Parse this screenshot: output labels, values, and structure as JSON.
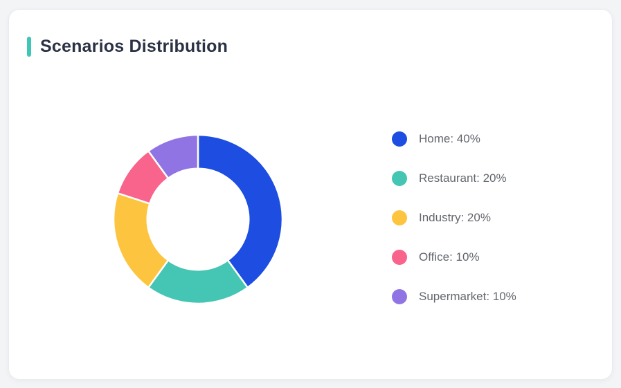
{
  "page": {
    "background_color": "#f3f4f6"
  },
  "card": {
    "title": "Scenarios Distribution",
    "accent_color": "#3ec6b6",
    "background_color": "#ffffff",
    "title_color": "#2b3245"
  },
  "chart_data": {
    "type": "pie",
    "variant": "donut",
    "title": "Scenarios Distribution",
    "inner_radius_ratio": 0.6,
    "start_angle_deg": 0,
    "direction": "clockwise",
    "legend_position": "right",
    "segment_gap_color": "#ffffff",
    "segments": [
      {
        "label": "Home",
        "value": 40,
        "unit": "%",
        "color": "#1d4de1",
        "legend_text": "Home: 40%"
      },
      {
        "label": "Restaurant",
        "value": 20,
        "unit": "%",
        "color": "#45c5b4",
        "legend_text": "Restaurant: 20%"
      },
      {
        "label": "Industry",
        "value": 20,
        "unit": "%",
        "color": "#fdc43f",
        "legend_text": "Industry: 20%"
      },
      {
        "label": "Office",
        "value": 10,
        "unit": "%",
        "color": "#f8648c",
        "legend_text": "Office: 10%"
      },
      {
        "label": "Supermarket",
        "value": 10,
        "unit": "%",
        "color": "#9174e4",
        "legend_text": "Supermarket: 10%"
      }
    ]
  }
}
